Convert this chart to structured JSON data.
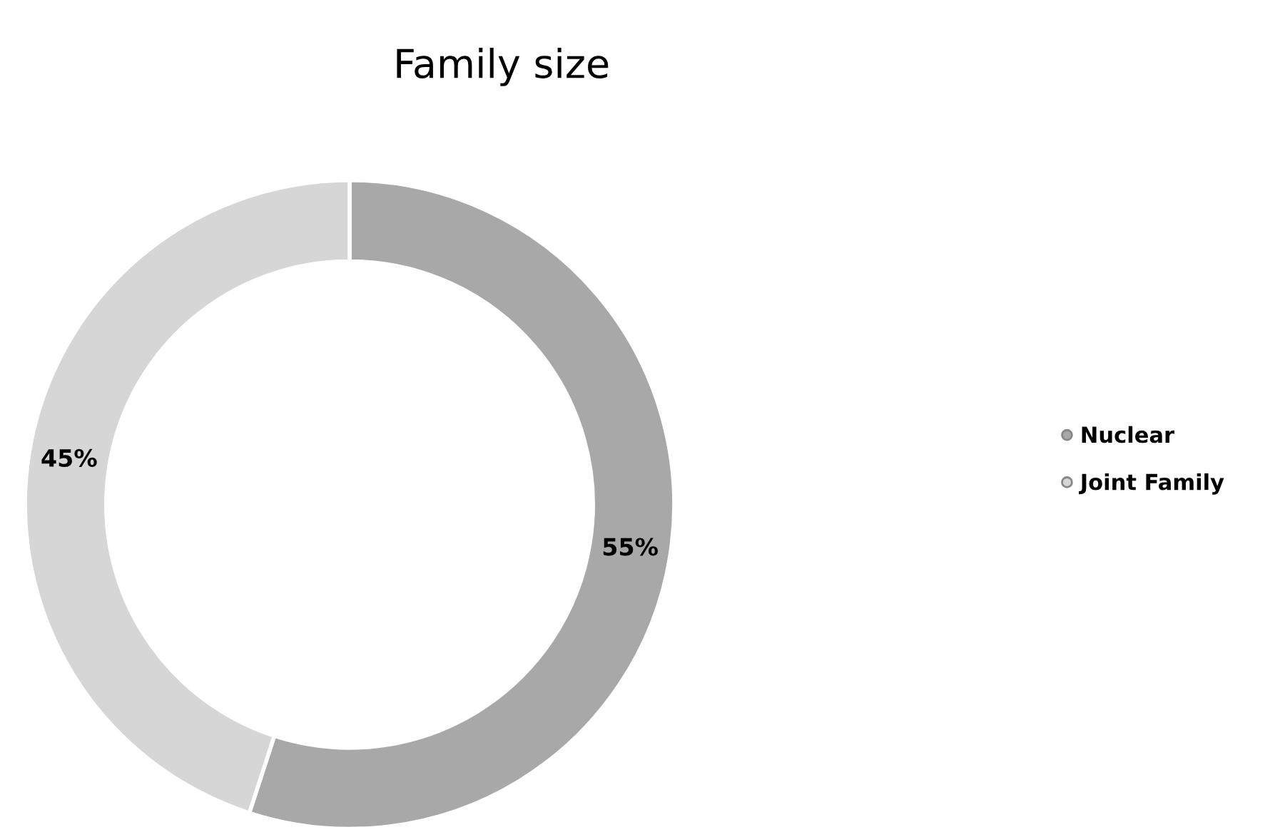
{
  "chart_data": {
    "type": "donut",
    "title": "Family size",
    "categories": [
      "Nuclear",
      "Joint Family"
    ],
    "values": [
      55,
      45
    ],
    "colors": [
      "#a8a8a8",
      "#d6d6d6"
    ],
    "value_labels": [
      "55%",
      "45%"
    ],
    "legend": "right"
  }
}
